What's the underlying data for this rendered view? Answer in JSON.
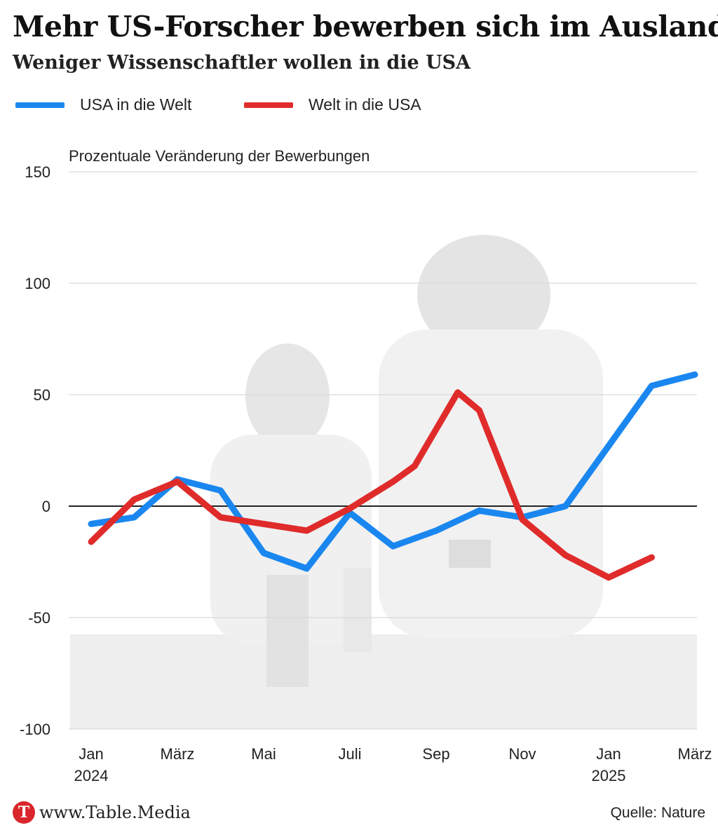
{
  "header": {
    "title": "Mehr US-Forscher bewerben sich im Ausland",
    "subtitle": "Weniger Wissenschaftler wollen in die USA"
  },
  "legend": [
    {
      "label": "USA in die Welt",
      "color": "#1a87f0"
    },
    {
      "label": "Welt in die USA",
      "color": "#e02b2b"
    }
  ],
  "footer": {
    "logo_letter": "T",
    "logo_text": "www.Table.Media",
    "source": "Quelle: Nature"
  },
  "chart_data": {
    "type": "line",
    "ylabel": "Prozentuale Veränderung der Bewerbungen",
    "ylim": [
      -100,
      150
    ],
    "yticks": [
      150,
      100,
      50,
      0,
      -50,
      -100
    ],
    "x": [
      "Jan 2024",
      "Feb 2024",
      "Mär 2024",
      "Apr 2024",
      "Mai 2024",
      "Jun 2024",
      "Jul 2024",
      "Aug 2024",
      "Sep 2024",
      "Okt 2024",
      "Nov 2024",
      "Dez 2024",
      "Jan 2025",
      "Feb 2025",
      "Mär 2025"
    ],
    "xtick_labels": [
      {
        "index": 0,
        "line1": "Jan",
        "line2": "2024"
      },
      {
        "index": 2,
        "line1": "März",
        "line2": ""
      },
      {
        "index": 4,
        "line1": "Mai",
        "line2": ""
      },
      {
        "index": 6,
        "line1": "Juli",
        "line2": ""
      },
      {
        "index": 8,
        "line1": "Sep",
        "line2": ""
      },
      {
        "index": 10,
        "line1": "Nov",
        "line2": ""
      },
      {
        "index": 12,
        "line1": "Jan",
        "line2": "2025"
      },
      {
        "index": 14,
        "line1": "März",
        "line2": ""
      }
    ],
    "grid": true,
    "legend_position": "top-left",
    "series": [
      {
        "name": "USA in die Welt",
        "color": "#1a87f0",
        "points": [
          [
            0,
            -8
          ],
          [
            1,
            -5
          ],
          [
            2,
            12
          ],
          [
            3,
            7
          ],
          [
            4,
            -21
          ],
          [
            5,
            -28
          ],
          [
            6,
            -3
          ],
          [
            7,
            -18
          ],
          [
            8,
            -11
          ],
          [
            9,
            -2
          ],
          [
            10,
            -5
          ],
          [
            11,
            0
          ],
          [
            12,
            27
          ],
          [
            13,
            54
          ],
          [
            14,
            59
          ]
        ]
      },
      {
        "name": "Welt in die USA",
        "color": "#e02b2b",
        "points": [
          [
            0,
            -16
          ],
          [
            1,
            3
          ],
          [
            2,
            11
          ],
          [
            3,
            -5
          ],
          [
            4,
            -8
          ],
          [
            5,
            -11
          ],
          [
            6,
            -1
          ],
          [
            7,
            11
          ],
          [
            7.5,
            18
          ],
          [
            8.5,
            51
          ],
          [
            9,
            43
          ],
          [
            10,
            -6
          ],
          [
            11,
            -22
          ],
          [
            12,
            -32
          ],
          [
            13,
            -23
          ]
        ]
      }
    ]
  }
}
